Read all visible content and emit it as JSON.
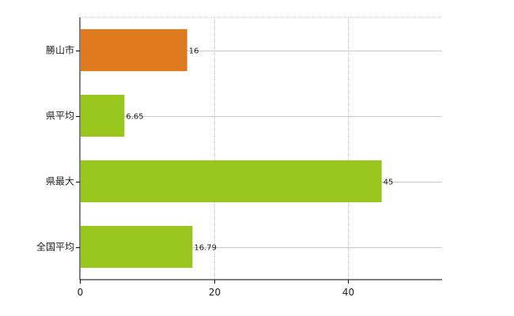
{
  "chart_data": {
    "type": "bar",
    "orientation": "horizontal",
    "categories": [
      "勝山市",
      "県平均",
      "県最大",
      "全国平均"
    ],
    "values": [
      16,
      6.65,
      45,
      16.79
    ],
    "value_labels": [
      "16",
      "6.65",
      "45",
      "16.79"
    ],
    "bar_colors": [
      "#e07a1f",
      "#99c61c",
      "#99c61c",
      "#99c61c"
    ],
    "xlim": [
      0,
      54
    ],
    "xticks": [
      0,
      20,
      40
    ],
    "xtick_labels": [
      "0",
      "20",
      "40"
    ],
    "grid": true,
    "legend": "none",
    "title": "",
    "xlabel": "",
    "ylabel": ""
  }
}
